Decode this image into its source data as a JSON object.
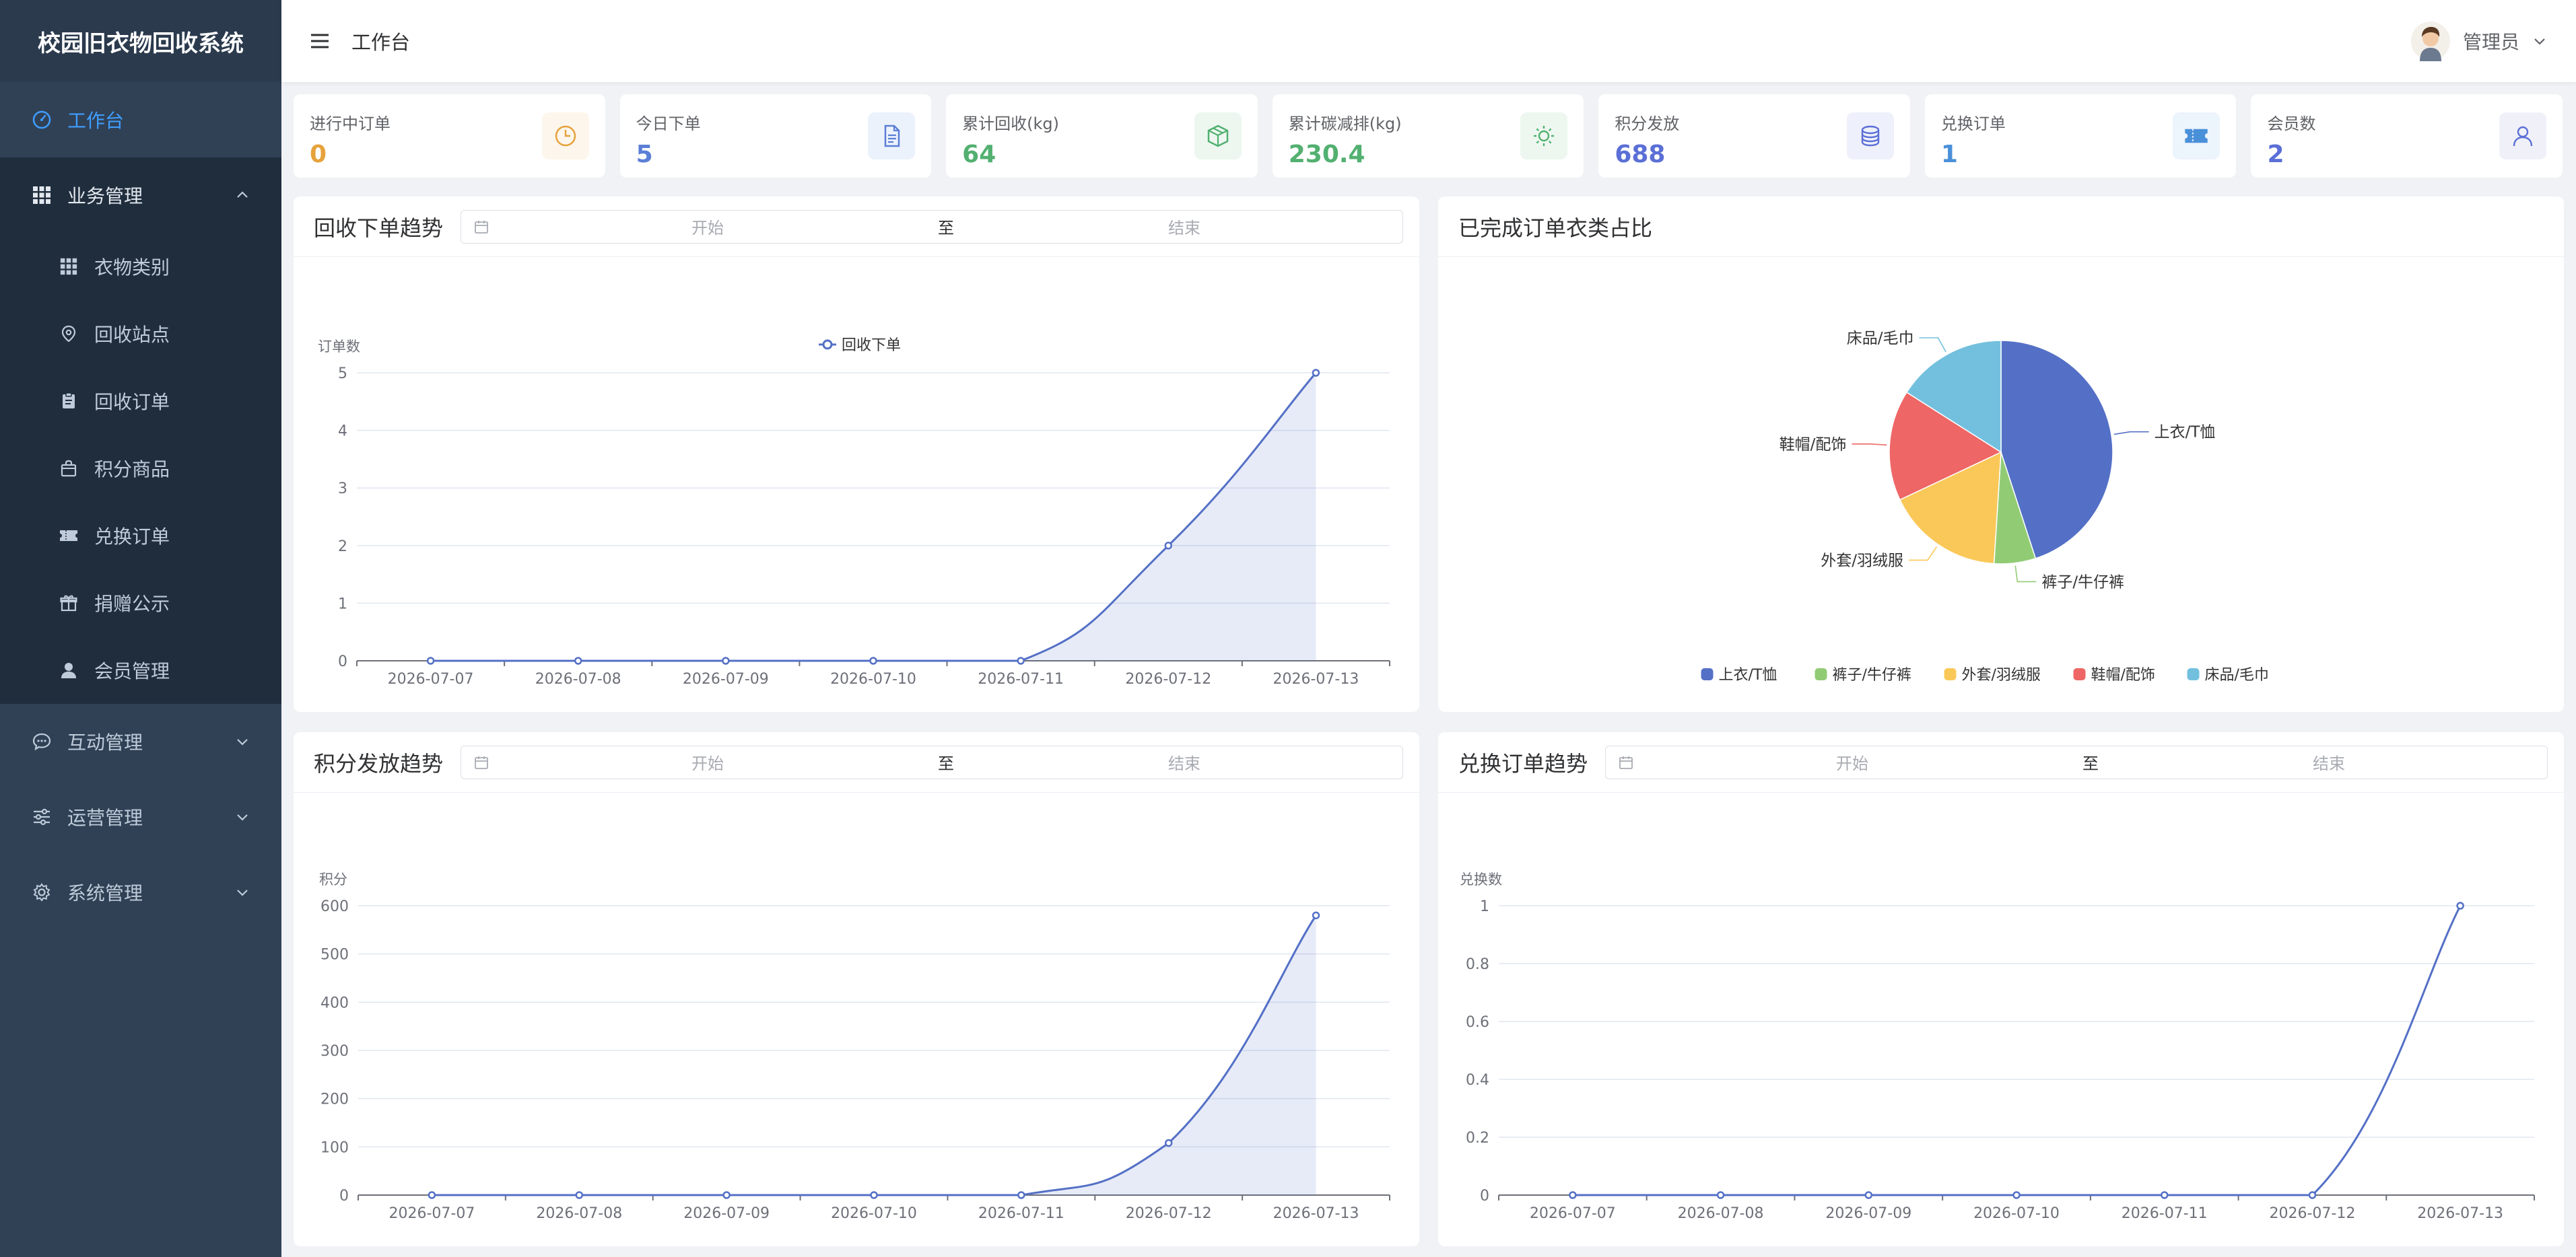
{
  "app": {
    "title": "校园旧衣物回收系统"
  },
  "header": {
    "breadcrumb": "工作台",
    "user_name": "管理员"
  },
  "sidebar": {
    "dashboard": "工作台",
    "business": {
      "label": "业务管理",
      "items": [
        "衣物类别",
        "回收站点",
        "回收订单",
        "积分商品",
        "兑换订单",
        "捐赠公示",
        "会员管理"
      ]
    },
    "groups": [
      "互动管理",
      "运营管理",
      "系统管理"
    ]
  },
  "stats": [
    {
      "label": "进行中订单",
      "value": "0",
      "color": "#e6a23c",
      "bg": "#fdf6ec",
      "icon": "clock-icon"
    },
    {
      "label": "今日下单",
      "value": "5",
      "color": "#5b7fd6",
      "bg": "#ecf2fc",
      "icon": "document-icon"
    },
    {
      "label": "累计回收(kg)",
      "value": "64",
      "color": "#52b070",
      "bg": "#edf7f0",
      "icon": "box-icon"
    },
    {
      "label": "累计碳减排(kg)",
      "value": "230.4",
      "color": "#52b070",
      "bg": "#edf7f0",
      "icon": "sun-icon"
    },
    {
      "label": "积分发放",
      "value": "688",
      "color": "#5b6fd6",
      "bg": "#eef0fb",
      "icon": "coins-icon"
    },
    {
      "label": "兑换订单",
      "value": "1",
      "color": "#4a90d9",
      "bg": "#ecf4fc",
      "icon": "ticket-icon"
    },
    {
      "label": "会员数",
      "value": "2",
      "color": "#5b6fd6",
      "bg": "#f0f1f8",
      "icon": "user-icon"
    }
  ],
  "date_range": {
    "start": "开始",
    "to": "至",
    "end": "结束"
  },
  "panels": {
    "orders": {
      "title": "回收下单趋势"
    },
    "pie": {
      "title": "已完成订单衣类占比"
    },
    "points": {
      "title": "积分发放趋势"
    },
    "exchange": {
      "title": "兑换订单趋势"
    }
  },
  "chart_data": [
    {
      "type": "line",
      "title": "回收下单趋势",
      "ylabel": "订单数",
      "x": [
        "2026-07-07",
        "2026-07-08",
        "2026-07-09",
        "2026-07-10",
        "2026-07-11",
        "2026-07-12",
        "2026-07-13"
      ],
      "series": [
        {
          "name": "回收下单",
          "values": [
            0,
            0,
            0,
            0,
            0,
            2,
            5
          ]
        }
      ],
      "yticks": [
        0,
        1,
        2,
        3,
        4,
        5
      ],
      "ylim": [
        0,
        5
      ],
      "area": true,
      "legend": "top-center",
      "color": "#5470c6"
    },
    {
      "type": "pie",
      "title": "已完成订单衣类占比",
      "slices": [
        {
          "name": "上衣/T恤",
          "value": 45,
          "color": "#5470c6"
        },
        {
          "name": "裤子/牛仔裤",
          "value": 6,
          "color": "#91cc75"
        },
        {
          "name": "外套/羽绒服",
          "value": 17,
          "color": "#fac858"
        },
        {
          "name": "鞋帽/配饰",
          "value": 16,
          "color": "#ee6666"
        },
        {
          "name": "床品/毛巾",
          "value": 16,
          "color": "#73c0de"
        }
      ],
      "legend": "bottom-center"
    },
    {
      "type": "line",
      "title": "积分发放趋势",
      "ylabel": "积分",
      "x": [
        "2026-07-07",
        "2026-07-08",
        "2026-07-09",
        "2026-07-10",
        "2026-07-11",
        "2026-07-12",
        "2026-07-13"
      ],
      "series": [
        {
          "values": [
            0,
            0,
            0,
            0,
            0,
            108,
            580
          ]
        }
      ],
      "yticks": [
        0,
        100,
        200,
        300,
        400,
        500,
        600
      ],
      "ylim": [
        0,
        600
      ],
      "area": true,
      "color": "#5470c6"
    },
    {
      "type": "line",
      "title": "兑换订单趋势",
      "ylabel": "兑换数",
      "x": [
        "2026-07-07",
        "2026-07-08",
        "2026-07-09",
        "2026-07-10",
        "2026-07-11",
        "2026-07-12",
        "2026-07-13"
      ],
      "series": [
        {
          "values": [
            0,
            0,
            0,
            0,
            0,
            0,
            1
          ]
        }
      ],
      "yticks": [
        0,
        0.2,
        0.4,
        0.6,
        0.8,
        1
      ],
      "ylim": [
        0,
        1
      ],
      "area": false,
      "color": "#5470c6"
    }
  ]
}
